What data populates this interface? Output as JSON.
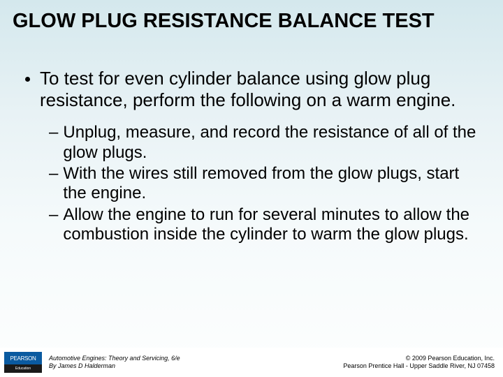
{
  "title": {
    "text": "GLOW PLUG RESISTANCE BALANCE TEST",
    "fontsize": 29,
    "color": "#000000",
    "weight": "bold"
  },
  "body": {
    "main_bullet": {
      "text": "To test for even cylinder balance using glow plug resistance, perform the following on a warm engine.",
      "fontsize": 26,
      "color": "#000000"
    },
    "sub_bullets": {
      "fontsize": 24,
      "color": "#000000",
      "items": [
        "Unplug, measure, and record the resistance of all of the glow plugs.",
        "With the wires still removed from the glow plugs, start the engine.",
        "Allow the engine to run for several minutes to allow the combustion inside the cylinder to warm the glow plugs."
      ]
    }
  },
  "footer": {
    "logo": {
      "top": "PEARSON",
      "bottom": "Education"
    },
    "left_line1": "Automotive Engines: Theory and Servicing, 6/e",
    "left_line2": "By James D Halderman",
    "right_line1": "© 2009 Pearson Education, Inc.",
    "right_line2": "Pearson Prentice Hall - Upper Saddle River, NJ 07458",
    "fontsize": 9
  },
  "background": {
    "gradient_top": "#d4e8ed",
    "gradient_bottom": "#fdfefe"
  }
}
